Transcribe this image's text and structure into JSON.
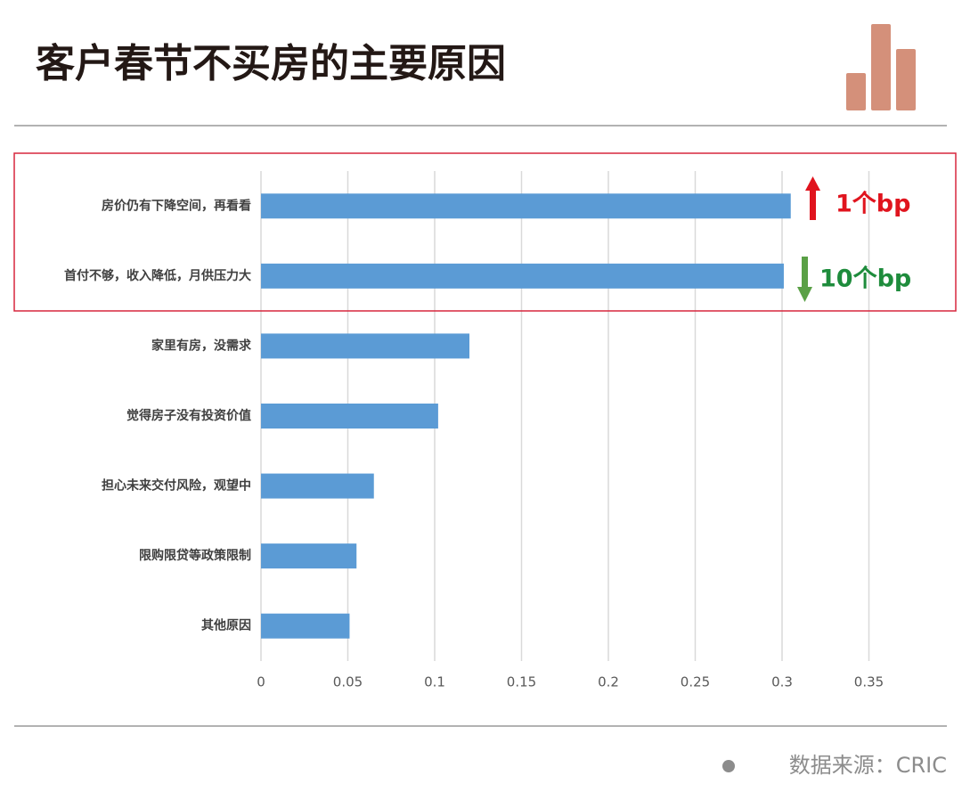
{
  "chart_data": {
    "type": "bar",
    "orientation": "horizontal",
    "title": "客户春节不买房的主要原因",
    "categories": [
      "房价仍有下降空间，再看看",
      "首付不够，收入降低，月供压力大",
      "家里有房，没需求",
      "觉得房子没有投资价值",
      "担心未来交付风险，观望中",
      "限购限贷等政策限制",
      "其他原因"
    ],
    "values": [
      0.305,
      0.301,
      0.12,
      0.102,
      0.065,
      0.055,
      0.051
    ],
    "color": "#5b9bd5",
    "xlim": [
      0,
      0.38
    ],
    "xticks": [
      0,
      0.05,
      0.1,
      0.15,
      0.2,
      0.25,
      0.3,
      0.35
    ],
    "grid": true,
    "annotations": [
      {
        "text": "1个bp",
        "color": "#e0141e"
      },
      {
        "text": "10个bp",
        "color": "#1e8c3c"
      }
    ],
    "source": "数据来源：CRIC"
  }
}
